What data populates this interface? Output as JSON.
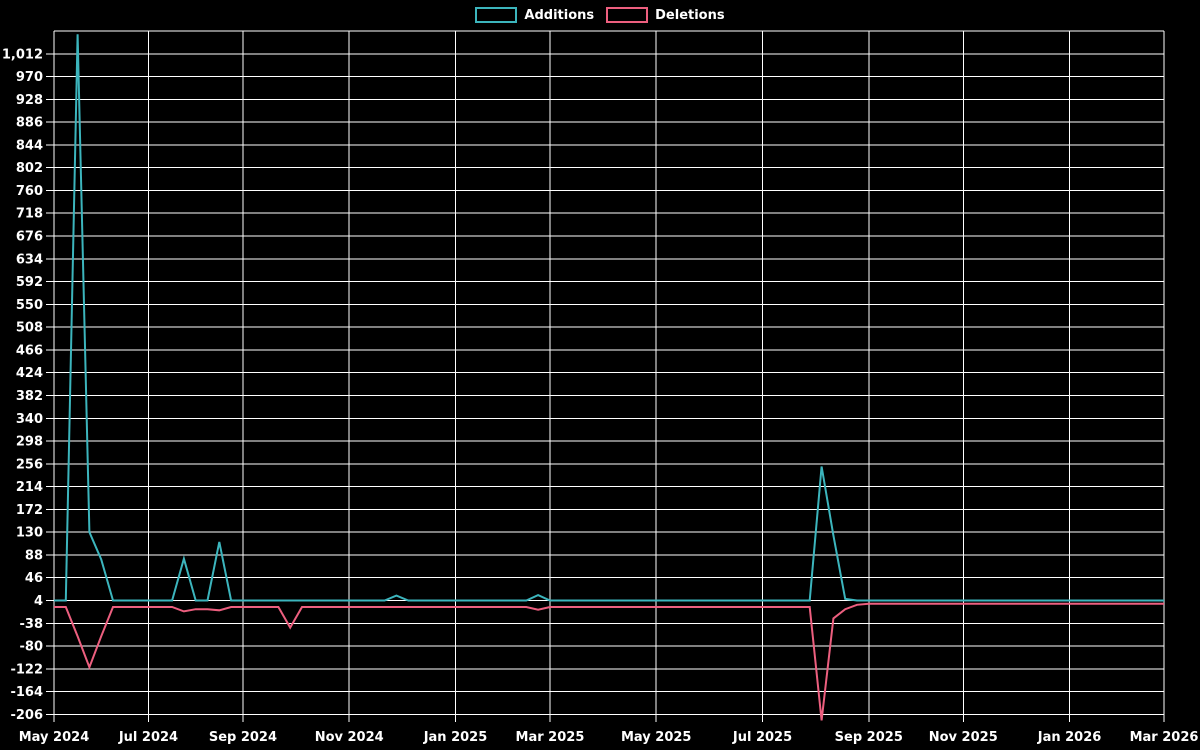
{
  "legend": {
    "additions_label": "Additions",
    "deletions_label": "Deletions"
  },
  "chart_data": {
    "type": "line",
    "background_color": "#000000",
    "grid": "on",
    "grid_color": "#ffffff",
    "legend_position": "top-center",
    "x_unit": "week",
    "x_ticks": [
      {
        "label": "May 2024",
        "week": 0
      },
      {
        "label": "Jul 2024",
        "week": 8
      },
      {
        "label": "Sep 2024",
        "week": 16
      },
      {
        "label": "Nov 2024",
        "week": 25
      },
      {
        "label": "Jan 2025",
        "week": 34
      },
      {
        "label": "Mar 2025",
        "week": 42
      },
      {
        "label": "May 2025",
        "week": 51
      },
      {
        "label": "Jul 2025",
        "week": 60
      },
      {
        "label": "Sep 2025",
        "week": 69
      },
      {
        "label": "Nov 2025",
        "week": 77
      },
      {
        "label": "Jan 2026",
        "week": 86
      },
      {
        "label": "Mar 2026",
        "week": 94
      }
    ],
    "y_tick_labels": [
      "1,012",
      "970",
      "928",
      "886",
      "844",
      "802",
      "760",
      "718",
      "676",
      "634",
      "592",
      "550",
      "508",
      "466",
      "424",
      "382",
      "340",
      "298",
      "256",
      "214",
      "172",
      "130",
      "88",
      "46",
      "4",
      "-38",
      "-80",
      "-122",
      "-164",
      "-206"
    ],
    "y_tick_values": [
      1012,
      970,
      928,
      886,
      844,
      802,
      760,
      718,
      676,
      634,
      592,
      550,
      508,
      466,
      424,
      382,
      340,
      298,
      256,
      214,
      172,
      130,
      88,
      46,
      4,
      -38,
      -80,
      -122,
      -164,
      -206
    ],
    "ylim": [
      -220,
      1054
    ],
    "series": [
      {
        "name": "Additions",
        "color": "#3cb5bd",
        "values": [
          4,
          4,
          1048,
          130,
          80,
          4,
          4,
          4,
          4,
          4,
          4,
          81,
          4,
          4,
          112,
          4,
          4,
          4,
          4,
          4,
          4,
          4,
          4,
          4,
          4,
          4,
          4,
          4,
          4,
          13,
          4,
          4,
          4,
          4,
          4,
          4,
          4,
          4,
          4,
          4,
          4,
          14,
          4,
          4,
          4,
          4,
          4,
          4,
          4,
          4,
          4,
          4,
          4,
          4,
          4,
          4,
          4,
          4,
          4,
          4,
          4,
          4,
          4,
          4,
          4,
          251,
          124,
          7,
          4,
          4,
          4,
          4,
          4,
          4,
          4,
          4,
          4,
          4,
          4,
          4,
          4,
          4,
          4,
          4,
          4,
          4,
          4,
          4,
          4,
          4,
          4,
          4,
          4,
          4,
          4
        ]
      },
      {
        "name": "Deletions",
        "color": "#ed5f7f",
        "values": [
          -8,
          -8,
          -62,
          -119,
          -62,
          -8,
          -8,
          -8,
          -8,
          -8,
          -8,
          -16,
          -12,
          -12,
          -14,
          -8,
          -8,
          -8,
          -8,
          -8,
          -46,
          -8,
          -8,
          -8,
          -8,
          -8,
          -8,
          -8,
          -8,
          -8,
          -8,
          -8,
          -8,
          -8,
          -8,
          -8,
          -8,
          -8,
          -8,
          -8,
          -8,
          -13,
          -8,
          -8,
          -8,
          -8,
          -8,
          -8,
          -8,
          -8,
          -8,
          -8,
          -8,
          -8,
          -8,
          -8,
          -8,
          -8,
          -8,
          -8,
          -8,
          -8,
          -8,
          -8,
          -8,
          -217,
          -29,
          -12,
          -4,
          -2,
          -2,
          -2,
          -2,
          -2,
          -2,
          -2,
          -2,
          -2,
          -2,
          -2,
          -2,
          -2,
          -2,
          -2,
          -2,
          -2,
          -2,
          -2,
          -2,
          -2,
          -2,
          -2,
          -2,
          -2,
          -2
        ]
      }
    ]
  }
}
